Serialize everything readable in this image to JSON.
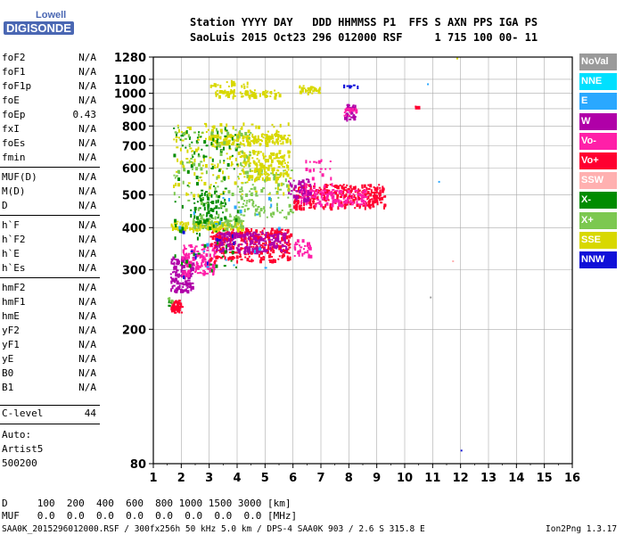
{
  "logo": {
    "top": "Lowell",
    "bottom": "DIGISONDE"
  },
  "header": {
    "line1": "Station YYYY DAY   DDD HHMMSS P1  FFS S AXN PPS IGA PS",
    "line2": "SaoLuis 2015 Oct23 296 012000 RSF     1 715 100 00- 11"
  },
  "params": [
    {
      "k": "foF2",
      "v": "N/A"
    },
    {
      "k": "foF1",
      "v": "N/A"
    },
    {
      "k": "foF1p",
      "v": "N/A"
    },
    {
      "k": "foE",
      "v": "N/A"
    },
    {
      "k": "foEp",
      "v": "0.43"
    },
    {
      "k": "fxI",
      "v": "N/A"
    },
    {
      "k": "foEs",
      "v": "N/A"
    },
    {
      "k": "fmin",
      "v": "N/A"
    },
    {
      "k": "MUF(D)",
      "v": "N/A"
    },
    {
      "k": "M(D)",
      "v": "N/A"
    },
    {
      "k": "D",
      "v": "N/A"
    },
    {
      "k": "h`F",
      "v": "N/A"
    },
    {
      "k": "h`F2",
      "v": "N/A"
    },
    {
      "k": "h`E",
      "v": "N/A"
    },
    {
      "k": "h`Es",
      "v": "N/A"
    },
    {
      "k": "hmF2",
      "v": "N/A"
    },
    {
      "k": "hmF1",
      "v": "N/A"
    },
    {
      "k": "hmE",
      "v": "N/A"
    },
    {
      "k": "yF2",
      "v": "N/A"
    },
    {
      "k": "yF1",
      "v": "N/A"
    },
    {
      "k": "yE",
      "v": "N/A"
    },
    {
      "k": "B0",
      "v": "N/A"
    },
    {
      "k": "B1",
      "v": "N/A"
    }
  ],
  "clevel": {
    "k": "C-level",
    "v": "44"
  },
  "auto": [
    "Auto:",
    "Artist5",
    "500200"
  ],
  "footer": {
    "d_row": "D     100  200  400  600  800 1000 1500 3000 [km]",
    "muf_row": "MUF   0.0  0.0  0.0  0.0  0.0  0.0  0.0  0.0 [MHz]",
    "file_line": "SAA0K_2015296012000.RSF / 300fx256h 50 kHz 5.0 km / DPS-4 SAA0K 903 / 2.6 S 315.8 E",
    "version": "Ion2Png 1.3.17"
  },
  "legend": [
    {
      "label": "NoVal",
      "color": "#9a9a9a"
    },
    {
      "label": "NNE",
      "color": "#00e0ff"
    },
    {
      "label": "E",
      "color": "#2aa8ff"
    },
    {
      "label": "W",
      "color": "#b000a8"
    },
    {
      "label": "Vo-",
      "color": "#ff1fa8"
    },
    {
      "label": "Vo+",
      "color": "#ff0030"
    },
    {
      "label": "SSW",
      "color": "#ffb0b0"
    },
    {
      "label": "X-",
      "color": "#008c00"
    },
    {
      "label": "X+",
      "color": "#7cc850"
    },
    {
      "label": "SSE",
      "color": "#d8d800"
    },
    {
      "label": "NNW",
      "color": "#1010d8"
    }
  ],
  "chart_data": {
    "type": "scatter",
    "xlim": [
      1,
      16
    ],
    "xticks": [
      "1",
      "2",
      "3",
      "4",
      "5",
      "6",
      "7",
      "8",
      "9",
      "10",
      "11",
      "12",
      "13",
      "14",
      "15",
      "16"
    ],
    "ylim": [
      80,
      1280
    ],
    "yscale": "log",
    "yticks": [
      "80",
      "200",
      "300",
      "400",
      "500",
      "600",
      "700",
      "800",
      "900",
      "1000",
      "1100",
      "1280"
    ],
    "grid": true,
    "clusters": [
      {
        "color": "#ff0030",
        "x": [
          1.6,
          2.0
        ],
        "y": [
          225,
          245
        ],
        "n": 60
      },
      {
        "color": "#b000a8",
        "x": [
          1.6,
          2.4
        ],
        "y": [
          260,
          330
        ],
        "n": 140
      },
      {
        "color": "#ff1fa8",
        "x": [
          2.0,
          3.2
        ],
        "y": [
          290,
          360
        ],
        "n": 140
      },
      {
        "color": "#ff0030",
        "x": [
          3.0,
          5.9
        ],
        "y": [
          320,
          400
        ],
        "n": 320
      },
      {
        "color": "#b000a8",
        "x": [
          3.2,
          5.8
        ],
        "y": [
          340,
          390
        ],
        "n": 200
      },
      {
        "color": "#ff1fa8",
        "x": [
          6.0,
          6.6
        ],
        "y": [
          330,
          370
        ],
        "n": 30
      },
      {
        "color": "#d8d800",
        "x": [
          1.6,
          4.2
        ],
        "y": [
          395,
          420
        ],
        "n": 120
      },
      {
        "color": "#7cc850",
        "x": [
          2.4,
          4.2
        ],
        "y": [
          400,
          440
        ],
        "n": 80
      },
      {
        "color": "#008c00",
        "x": [
          2.4,
          3.6
        ],
        "y": [
          410,
          520
        ],
        "n": 60
      },
      {
        "color": "#ff0030",
        "x": [
          6.0,
          9.3
        ],
        "y": [
          460,
          540
        ],
        "n": 300
      },
      {
        "color": "#ff1fa8",
        "x": [
          6.2,
          8.6
        ],
        "y": [
          470,
          520
        ],
        "n": 120
      },
      {
        "color": "#b000a8",
        "x": [
          5.8,
          6.6
        ],
        "y": [
          480,
          560
        ],
        "n": 50
      },
      {
        "color": "#7cc850",
        "x": [
          4.0,
          6.0
        ],
        "y": [
          430,
          600
        ],
        "n": 100
      },
      {
        "color": "#d8d800",
        "x": [
          4.0,
          5.8
        ],
        "y": [
          560,
          680
        ],
        "n": 150
      },
      {
        "color": "#d8d800",
        "x": [
          3.0,
          5.8
        ],
        "y": [
          710,
          760
        ],
        "n": 130
      },
      {
        "color": "#d8d800",
        "x": [
          1.7,
          5.9
        ],
        "y": [
          500,
          820
        ],
        "n": 180
      },
      {
        "color": "#008c00",
        "x": [
          1.7,
          4.0
        ],
        "y": [
          300,
          800
        ],
        "n": 110
      },
      {
        "color": "#7cc850",
        "x": [
          1.7,
          4.5
        ],
        "y": [
          450,
          800
        ],
        "n": 90
      },
      {
        "color": "#d8d800",
        "x": [
          3.2,
          5.5
        ],
        "y": [
          980,
          1030
        ],
        "n": 80
      },
      {
        "color": "#d8d800",
        "x": [
          6.2,
          7.0
        ],
        "y": [
          1000,
          1060
        ],
        "n": 30
      },
      {
        "color": "#d8d800",
        "x": [
          3.0,
          4.5
        ],
        "y": [
          1050,
          1100
        ],
        "n": 20
      },
      {
        "color": "#b000a8",
        "x": [
          7.8,
          8.3
        ],
        "y": [
          840,
          930
        ],
        "n": 40
      },
      {
        "color": "#ff1fa8",
        "x": [
          7.8,
          8.3
        ],
        "y": [
          860,
          910
        ],
        "n": 15
      },
      {
        "color": "#1010d8",
        "x": [
          7.8,
          8.3
        ],
        "y": [
          1050,
          1065
        ],
        "n": 8
      },
      {
        "color": "#ff0030",
        "x": [
          10.3,
          10.5
        ],
        "y": [
          915,
          925
        ],
        "n": 3
      },
      {
        "color": "#ff1fa8",
        "x": [
          6.4,
          7.4
        ],
        "y": [
          520,
          640
        ],
        "n": 25
      },
      {
        "color": "#008c00",
        "x": [
          1.5,
          1.6
        ],
        "y": [
          236,
          246
        ],
        "n": 8
      },
      {
        "color": "#7cc850",
        "x": [
          1.5,
          1.7
        ],
        "y": [
          240,
          250
        ],
        "n": 6
      },
      {
        "color": "#2aa8ff",
        "x": [
          1.7,
          5.5
        ],
        "y": [
          300,
          500
        ],
        "n": 20
      },
      {
        "color": "#1010d8",
        "x": [
          2.0,
          4.0
        ],
        "y": [
          280,
          400
        ],
        "n": 10
      }
    ]
  }
}
